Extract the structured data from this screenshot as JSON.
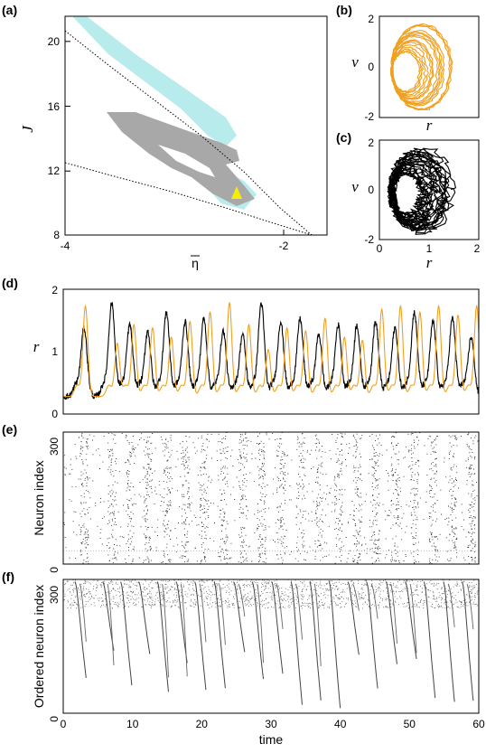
{
  "panels": {
    "a": {
      "label": "(a)",
      "xlabel": "η",
      "ylabel": "J",
      "xticks": [
        "-4",
        "-2"
      ],
      "yticks": [
        "8",
        "12",
        "16",
        "20"
      ]
    },
    "b": {
      "label": "(b)",
      "xlabel": "r",
      "ylabel": "v",
      "yticks": [
        "-2",
        "0",
        "2"
      ]
    },
    "c": {
      "label": "(c)",
      "xlabel": "r",
      "ylabel": "v",
      "xticks": [
        "0",
        "1",
        "2"
      ],
      "yticks": [
        "-2",
        "0",
        "2"
      ]
    },
    "d": {
      "label": "(d)",
      "ylabel": "r",
      "yticks": [
        "0",
        "1",
        "2"
      ]
    },
    "e": {
      "label": "(e)",
      "ylabel": "Neuron index",
      "yticks": [
        "0",
        "300"
      ]
    },
    "f": {
      "label": "(f)",
      "ylabel": "Ordered neuron index",
      "xlabel": "time",
      "xticks": [
        "0",
        "10",
        "20",
        "30",
        "40",
        "50",
        "60"
      ],
      "yticks": [
        "0",
        "300"
      ]
    }
  },
  "colors": {
    "orange": "#f0a020",
    "black": "#000000",
    "cyan": "#b8ecec",
    "gray": "#a8a8a8",
    "yellow": "#f4f000"
  },
  "chart_data": [
    {
      "type": "area",
      "panel": "a",
      "xlim": [
        -4,
        -1.6
      ],
      "ylim": [
        8,
        21.5
      ],
      "xlabel": "η",
      "ylabel": "J",
      "annotations": [
        "yellow triangle marker near η≈-2.5, J≈10.6"
      ]
    },
    {
      "type": "line",
      "panel": "b",
      "xlim": [
        0,
        2
      ],
      "ylim": [
        -2,
        2
      ],
      "xlabel": "r",
      "ylabel": "v",
      "series": [
        {
          "color": "#f0a020"
        }
      ]
    },
    {
      "type": "line",
      "panel": "c",
      "xlim": [
        0,
        2
      ],
      "ylim": [
        -2,
        2
      ],
      "xlabel": "r",
      "ylabel": "v",
      "series": [
        {
          "color": "#000000"
        }
      ]
    },
    {
      "type": "line",
      "panel": "d",
      "xlim": [
        0,
        60
      ],
      "ylim": [
        0,
        2
      ],
      "ylabel": "r",
      "series": [
        {
          "color": "#f0a020",
          "peak_times": [
            3.2,
            7.8,
            10.2,
            12.9,
            15.6,
            18.3,
            21.2,
            24.0,
            26.8,
            29.6,
            32.3,
            35.0,
            37.8,
            40.6,
            43.2,
            46.0,
            48.7,
            51.5,
            54.2,
            57.0,
            59.7
          ],
          "peak_values": [
            1.7,
            1.1,
            1.4,
            1.35,
            1.2,
            1.45,
            1.6,
            1.75,
            1.4,
            1.0,
            1.35,
            1.3,
            1.5,
            1.2,
            1.15,
            1.65,
            1.7,
            1.6,
            1.7,
            1.55,
            1.7
          ]
        },
        {
          "color": "#000000",
          "peak_times": [
            3.0,
            7.0,
            9.6,
            12.2,
            14.9,
            17.6,
            20.3,
            23.1,
            25.9,
            28.6,
            31.4,
            34.2,
            36.9,
            39.7,
            42.4,
            45.1,
            47.9,
            50.7,
            53.4,
            56.2,
            58.9
          ],
          "peak_values": [
            1.35,
            1.75,
            1.4,
            1.3,
            1.6,
            1.45,
            1.5,
            1.3,
            1.25,
            1.75,
            1.45,
            1.5,
            1.25,
            1.4,
            1.4,
            1.45,
            1.35,
            1.6,
            1.45,
            1.5,
            1.2
          ]
        }
      ]
    },
    {
      "type": "scatter",
      "panel": "e",
      "xlim": [
        0,
        60
      ],
      "ylim": [
        0,
        300
      ],
      "ylabel": "Neuron index"
    },
    {
      "type": "scatter",
      "panel": "f",
      "xlim": [
        0,
        60
      ],
      "ylim": [
        0,
        300
      ],
      "xlabel": "time",
      "ylabel": "Ordered neuron index"
    }
  ]
}
